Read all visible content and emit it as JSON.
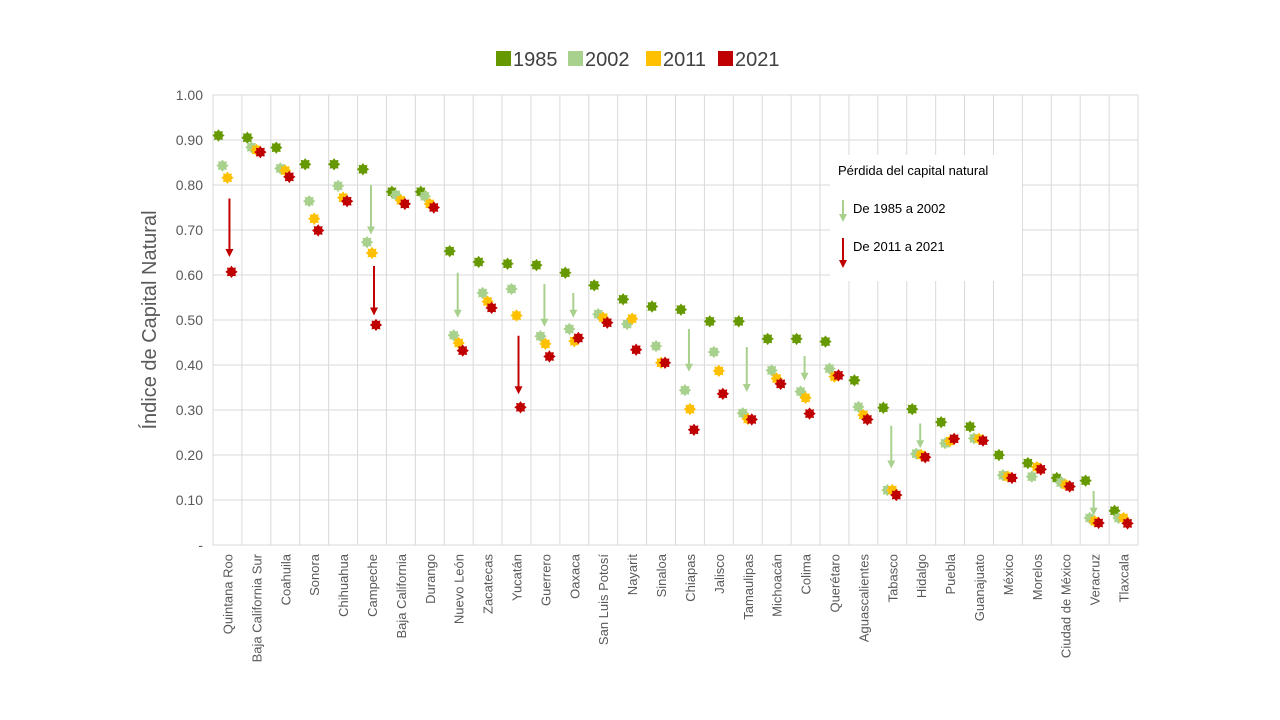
{
  "chart_data": {
    "type": "scatter",
    "title": "",
    "xlabel": "",
    "ylabel": "Índice de Capital Natural",
    "ylim": [
      0,
      1
    ],
    "y_ticks": [
      "-",
      "0.10",
      "0.20",
      "0.30",
      "0.40",
      "0.50",
      "0.60",
      "0.70",
      "0.80",
      "0.90",
      "1.00"
    ],
    "grid": true,
    "legend_position": "top",
    "categories": [
      "Quintana Roo",
      "Baja California Sur",
      "Coahuila",
      "Sonora",
      "Chihuahua",
      "Campeche",
      "Baja California",
      "Durango",
      "Nuevo León",
      "Zacatecas",
      "Yucatán",
      "Guerrero",
      "Oaxaca",
      "San Luis Potosí",
      "Nayarit",
      "Sinaloa",
      "Chiapas",
      "Jalisco",
      "Tamaulipas",
      "Michoacán",
      "Colima",
      "Querétaro",
      "Aguascalientes",
      "Tabasco",
      "Hidalgo",
      "Puebla",
      "Guanajuato",
      "México",
      "Morelos",
      "Ciudad de México",
      "Veracruz",
      "Tlaxcala"
    ],
    "series": [
      {
        "name": "1985",
        "color": "#669900",
        "values": [
          0.91,
          0.905,
          0.883,
          0.846,
          0.846,
          0.835,
          0.785,
          0.785,
          0.653,
          0.629,
          0.625,
          0.622,
          0.605,
          0.577,
          0.546,
          0.53,
          0.523,
          0.497,
          0.497,
          0.458,
          0.458,
          0.452,
          0.366,
          0.305,
          0.302,
          0.273,
          0.263,
          0.2,
          0.182,
          0.149,
          0.143,
          0.076
        ]
      },
      {
        "name": "2002",
        "color": "#A9D18E",
        "values": [
          0.843,
          0.884,
          0.837,
          0.764,
          0.798,
          0.673,
          0.778,
          0.775,
          0.466,
          0.56,
          0.569,
          0.464,
          0.48,
          0.513,
          0.491,
          0.442,
          0.344,
          0.429,
          0.293,
          0.388,
          0.341,
          0.392,
          0.307,
          0.122,
          0.203,
          0.226,
          0.237,
          0.155,
          0.152,
          0.139,
          0.06,
          0.06
        ]
      },
      {
        "name": "2011",
        "color": "#FFC000",
        "values": [
          0.816,
          0.878,
          0.832,
          0.725,
          0.772,
          0.649,
          0.766,
          0.758,
          0.449,
          0.541,
          0.51,
          0.447,
          0.453,
          0.505,
          0.503,
          0.405,
          0.302,
          0.387,
          0.28,
          0.37,
          0.327,
          0.374,
          0.289,
          0.122,
          0.2,
          0.231,
          0.236,
          0.152,
          0.173,
          0.134,
          0.053,
          0.06
        ]
      },
      {
        "name": "2021",
        "color": "#C00000",
        "values": [
          0.607,
          0.873,
          0.818,
          0.699,
          0.764,
          0.489,
          0.758,
          0.75,
          0.432,
          0.527,
          0.306,
          0.419,
          0.46,
          0.494,
          0.434,
          0.405,
          0.256,
          0.336,
          0.279,
          0.358,
          0.292,
          0.377,
          0.279,
          0.111,
          0.195,
          0.236,
          0.232,
          0.149,
          0.168,
          0.13,
          0.049,
          0.048
        ]
      }
    ],
    "annotation_box": {
      "title": "Pérdida del capital natural",
      "items": [
        {
          "label": "De 1985  a 2002",
          "color": "#A9D18E"
        },
        {
          "label": "De 2011  a 2021",
          "color": "#C00000"
        }
      ]
    },
    "arrows_1985_2002": [
      {
        "category": "Campeche",
        "from": 0.8,
        "to": 0.69
      },
      {
        "category": "Nuevo León",
        "from": 0.605,
        "to": 0.505
      },
      {
        "category": "Guerrero",
        "from": 0.58,
        "to": 0.485
      },
      {
        "category": "Oaxaca",
        "from": 0.56,
        "to": 0.505
      },
      {
        "category": "Chiapas",
        "from": 0.48,
        "to": 0.385
      },
      {
        "category": "Tamaulipas",
        "from": 0.44,
        "to": 0.34
      },
      {
        "category": "Colima",
        "from": 0.42,
        "to": 0.365
      },
      {
        "category": "Tabasco",
        "from": 0.265,
        "to": 0.17
      },
      {
        "category": "Hidalgo",
        "from": 0.27,
        "to": 0.215
      },
      {
        "category": "Veracruz",
        "from": 0.12,
        "to": 0.065
      }
    ],
    "arrows_2011_2021": [
      {
        "category": "Quintana Roo",
        "from": 0.77,
        "to": 0.64
      },
      {
        "category": "Campeche",
        "from": 0.62,
        "to": 0.51
      },
      {
        "category": "Yucatán",
        "from": 0.465,
        "to": 0.335
      }
    ]
  }
}
